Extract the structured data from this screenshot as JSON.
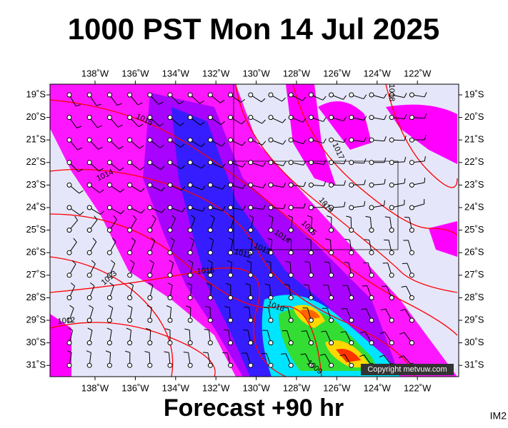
{
  "header": {
    "title": "1000 PST Mon 14 Jul 2025"
  },
  "map": {
    "lon_labels": [
      "138˚W",
      "136˚W",
      "134˚W",
      "132˚W",
      "130˚W",
      "128˚W",
      "126˚W",
      "124˚W",
      "122˚W"
    ],
    "lat_labels": [
      "19˚S",
      "20˚S",
      "21˚S",
      "22˚S",
      "23˚S",
      "24˚S",
      "25˚S",
      "26˚S",
      "27˚S",
      "28˚S",
      "29˚S",
      "30˚S",
      "31˚S"
    ],
    "isobar_labels": [
      "1018",
      "1015",
      "1014",
      "1017",
      "1019",
      "1015",
      "1014",
      "1013",
      "1012",
      "1016",
      "1013",
      "1012",
      "1016",
      "1009"
    ],
    "copyright": "Copyright metvuw.com"
  },
  "footer": {
    "forecast": "Forecast +90 hr",
    "code": "IM2"
  }
}
